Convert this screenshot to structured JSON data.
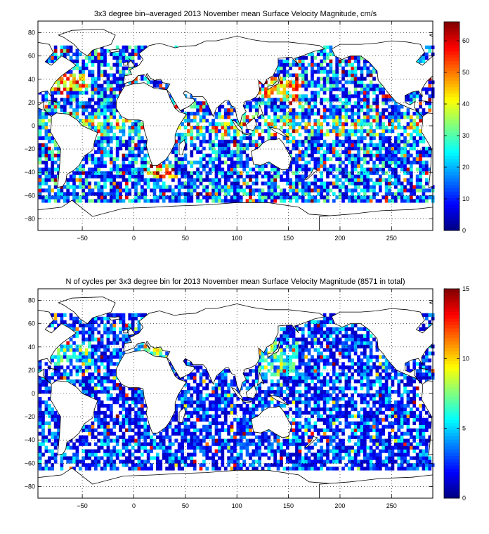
{
  "chart_data": [
    {
      "type": "heatmap",
      "title": "3x3 degree bin–averaged 2013 November mean Surface Velocity Magnitude, cm/s",
      "xlabel": "",
      "ylabel": "",
      "x_ticks": [
        "−50",
        "0",
        "50",
        "100",
        "150",
        "200",
        "250"
      ],
      "x_tick_values": [
        -50,
        0,
        50,
        100,
        150,
        200,
        250
      ],
      "y_ticks": [
        "80",
        "60",
        "40",
        "20",
        "0",
        "−20",
        "−40",
        "−60",
        "−80"
      ],
      "y_tick_values": [
        80,
        60,
        40,
        20,
        0,
        -20,
        -40,
        -60,
        -80
      ],
      "xlim": [
        -93,
        290
      ],
      "ylim": [
        -90,
        90
      ],
      "bin_size_deg": 3,
      "colorbar": {
        "ticks": [
          "0",
          "10",
          "20",
          "30",
          "40",
          "50",
          "60"
        ],
        "tick_values": [
          0,
          10,
          20,
          30,
          40,
          50,
          60
        ],
        "clim": [
          0,
          66
        ],
        "colormap": "jet"
      },
      "grid": true,
      "grid_style": "dotted",
      "data_coverage": "Bins filled over open ocean roughly between 60S and 70N; highest values (50-66) in western boundary currents, Agulhas retroflection and equatorial band; most bins 5-25"
    },
    {
      "type": "heatmap",
      "title": "N of cycles per 3x3 degree bin for 2013 November mean Surface Velocity Magnitude (8571 in total)",
      "xlabel": "",
      "ylabel": "",
      "x_ticks": [
        "−50",
        "0",
        "50",
        "100",
        "150",
        "200",
        "250"
      ],
      "x_tick_values": [
        -50,
        0,
        50,
        100,
        150,
        200,
        250
      ],
      "y_ticks": [
        "80",
        "60",
        "40",
        "20",
        "0",
        "−20",
        "−40",
        "−60",
        "−80"
      ],
      "y_tick_values": [
        80,
        60,
        40,
        20,
        0,
        -20,
        -40,
        -60,
        -80
      ],
      "xlim": [
        -93,
        290
      ],
      "ylim": [
        -90,
        90
      ],
      "bin_size_deg": 3,
      "total_cycles": 8571,
      "colorbar": {
        "ticks": [
          "0",
          "5",
          "10",
          "15"
        ],
        "tick_values": [
          0,
          5,
          10,
          15
        ],
        "clim": [
          0,
          15
        ],
        "colormap": "jet"
      },
      "grid": true,
      "grid_style": "dotted",
      "data_coverage": "Same bins as the velocity map; most bins hold 1-4 cycles, a few (Kuroshio, Gulf Stream, Mediterranean, South China Sea) reach 10-15"
    }
  ],
  "colors": {
    "land": "#ffffff",
    "coastline": "#000000",
    "grid": "#000000",
    "jet_low": "#00008f",
    "jet_high": "#800000"
  }
}
